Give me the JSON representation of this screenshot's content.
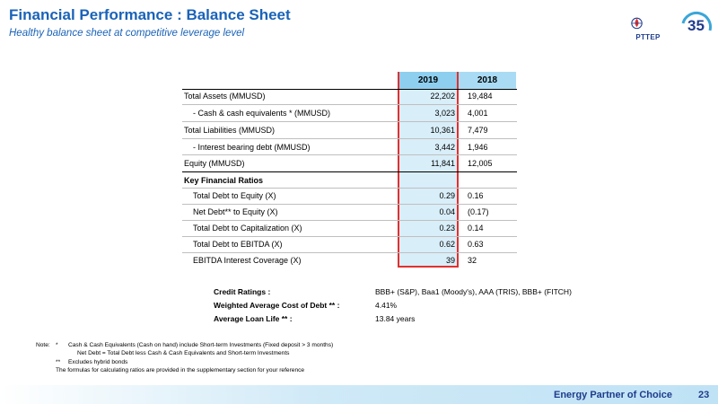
{
  "header": {
    "title": "Financial Performance : Balance Sheet",
    "subtitle": "Healthy balance sheet at competitive leverage level",
    "logo_text": "PTTEP"
  },
  "table": {
    "columns": [
      "2019",
      "2018"
    ],
    "rows": [
      {
        "label": "Total Assets (MMUSD)",
        "v2019": "22,202",
        "v2018": "19,484"
      },
      {
        "label": "- Cash & cash equivalents * (MMUSD)",
        "v2019": "3,023",
        "v2018": "4,001"
      },
      {
        "label": "Total Liabilities (MMUSD)",
        "v2019": "10,361",
        "v2018": "7,479"
      },
      {
        "label": "- Interest bearing debt (MMUSD)",
        "v2019": "3,442",
        "v2018": "1,946"
      },
      {
        "label": "Equity (MMUSD)",
        "v2019": "11,841",
        "v2018": "12,005"
      }
    ],
    "ratios_heading": "Key Financial Ratios",
    "ratios": [
      {
        "label": "Total Debt to Equity (X)",
        "v2019": "0.29",
        "v2018": "0.16"
      },
      {
        "label": "Net Debt** to Equity (X)",
        "v2019": "0.04",
        "v2018": "(0.17)"
      },
      {
        "label": "Total Debt to Capitalization (X)",
        "v2019": "0.23",
        "v2018": "0.14"
      },
      {
        "label": "Total Debt to EBITDA (X)",
        "v2019": "0.62",
        "v2018": "0.63"
      },
      {
        "label": "EBITDA Interest Coverage (X)",
        "v2019": "39",
        "v2018": "32"
      }
    ]
  },
  "credit": [
    {
      "label": "Credit Ratings :",
      "value": "BBB+ (S&P), Baa1 (Moody's), AAA (TRIS), BBB+ (FITCH)"
    },
    {
      "label": "Weighted Average Cost of Debt ** :",
      "value": "4.41%"
    },
    {
      "label": "Average Loan Life ** :",
      "value": "13.84 years"
    }
  ],
  "notes": {
    "prefix": "Note:",
    "lines": [
      {
        "mark": "*",
        "text": "Cash & Cash Equivalents (Cash on hand) include Short-term Investments (Fixed deposit > 3 months)"
      },
      {
        "mark": "",
        "text": "Net Debt = Total Debt less Cash & Cash Equivalents and Short-term Investments"
      },
      {
        "mark": "**",
        "text": "Excludes hybrid bonds"
      },
      {
        "mark": "",
        "text": "The formulas for calculating ratios are provided in the supplementary section for your reference"
      }
    ]
  },
  "footer": {
    "tagline": "Energy Partner of Choice",
    "page": "23"
  }
}
